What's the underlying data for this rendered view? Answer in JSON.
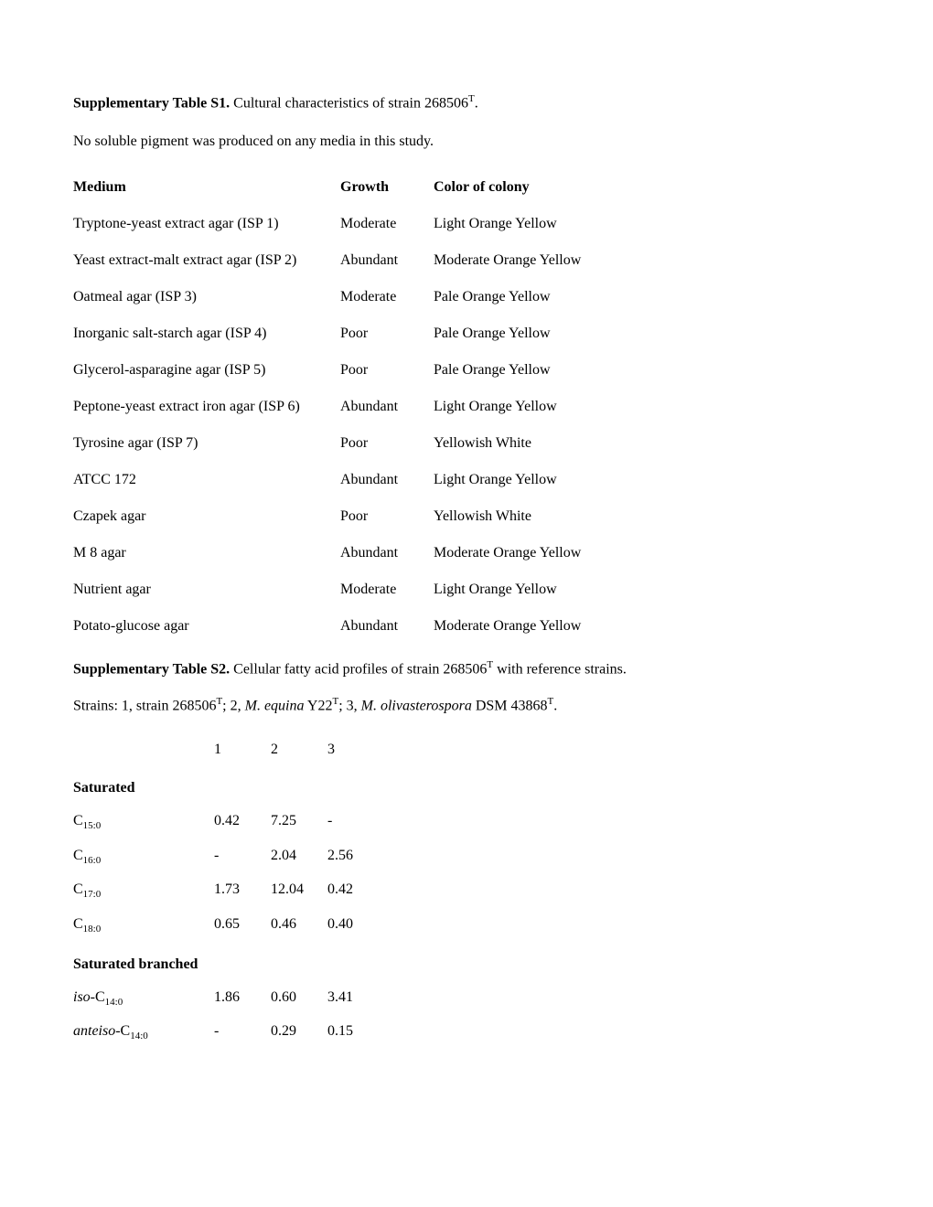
{
  "table_s1": {
    "title_bold": "Supplementary Table S1.",
    "title_rest": " Cultural characteristics of strain 268506",
    "title_sup": "T",
    "title_end": ".",
    "note": "No soluble pigment was produced on any media in this study.",
    "headers": {
      "c1": "Medium",
      "c2": "Growth",
      "c3": "Color of colony"
    },
    "rows": [
      {
        "medium": "Tryptone-yeast extract agar (ISP 1)",
        "growth": "Moderate",
        "color": "Light Orange Yellow"
      },
      {
        "medium": "Yeast extract-malt extract agar (ISP 2)",
        "growth": "Abundant",
        "color": "Moderate Orange Yellow"
      },
      {
        "medium": "Oatmeal agar (ISP 3)",
        "growth": "Moderate",
        "color": "Pale Orange Yellow"
      },
      {
        "medium": "Inorganic salt-starch agar (ISP 4)",
        "growth": "Poor",
        "color": "Pale Orange Yellow"
      },
      {
        "medium": "Glycerol-asparagine agar (ISP 5)",
        "growth": "Poor",
        "color": "Pale Orange Yellow"
      },
      {
        "medium": "Peptone-yeast extract iron agar (ISP 6)",
        "growth": "Abundant",
        "color": "Light Orange Yellow"
      },
      {
        "medium": "Tyrosine agar (ISP 7)",
        "growth": "Poor",
        "color": "Yellowish White"
      },
      {
        "medium": "ATCC 172",
        "growth": "Abundant",
        "color": "Light Orange Yellow"
      },
      {
        "medium": "Czapek agar",
        "growth": "Poor",
        "color": "Yellowish White"
      },
      {
        "medium": "M 8 agar",
        "growth": "Abundant",
        "color": "Moderate Orange Yellow"
      },
      {
        "medium": "Nutrient agar",
        "growth": "Moderate",
        "color": "Light Orange Yellow"
      },
      {
        "medium": "Potato-glucose agar",
        "growth": "Abundant",
        "color": "Moderate Orange Yellow"
      }
    ]
  },
  "table_s2": {
    "title_bold": "Supplementary Table S2.",
    "title_rest": " Cellular fatty acid profiles of strain 268506",
    "title_sup": "T",
    "title_end": " with reference strains.",
    "strains_prefix": "Strains: 1, strain 268506",
    "strains_sup1": "T",
    "strains_2a": "; 2, ",
    "strains_2i": "M. equina",
    "strains_2b": " Y22",
    "strains_sup2": "T",
    "strains_3a": "; 3, ",
    "strains_3i": "M. olivasterospora",
    "strains_3b": " DSM 43868",
    "strains_sup3": "T",
    "strains_end": ".",
    "col_headers": {
      "c1": "1",
      "c2": "2",
      "c3": "3"
    },
    "saturated_label": "Saturated",
    "saturated_branched_label": "Saturated branched",
    "rows_sat": [
      {
        "label_pre": "C",
        "label_sub": "15:0",
        "v1": "0.42",
        "v2": "7.25",
        "v3": "-"
      },
      {
        "label_pre": "C",
        "label_sub": "16:0",
        "v1": "-",
        "v2": "2.04",
        "v3": "2.56"
      },
      {
        "label_pre": "C",
        "label_sub": "17:0",
        "v1": "1.73",
        "v2": "12.04",
        "v3": "0.42"
      },
      {
        "label_pre": "C",
        "label_sub": "18:0",
        "v1": "0.65",
        "v2": "0.46",
        "v3": "0.40"
      }
    ],
    "rows_br": [
      {
        "label_italic": "iso",
        "label_mid": "-C",
        "label_sub": "14:0",
        "v1": "1.86",
        "v2": "0.60",
        "v3": "3.41"
      },
      {
        "label_italic": "anteiso",
        "label_mid": "-C",
        "label_sub": "14:0",
        "v1": "-",
        "v2": "0.29",
        "v3": "0.15"
      }
    ]
  }
}
